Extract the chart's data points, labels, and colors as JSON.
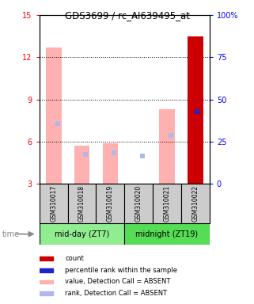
{
  "title": "GDS3699 / rc_AI639495_at",
  "samples": [
    "GSM310017",
    "GSM310018",
    "GSM310019",
    "GSM310020",
    "GSM310021",
    "GSM310022"
  ],
  "groups": [
    {
      "label": "mid-day (ZT7)",
      "indices": [
        0,
        1,
        2
      ],
      "color": "#90EE90"
    },
    {
      "label": "midnight (ZT19)",
      "indices": [
        3,
        4,
        5
      ],
      "color": "#55DD55"
    }
  ],
  "value_absent": [
    12.7,
    5.7,
    5.9,
    null,
    8.3,
    null
  ],
  "rank_absent_pct": [
    36.0,
    17.5,
    18.5,
    16.5,
    29.0,
    null
  ],
  "value_present": [
    null,
    null,
    null,
    null,
    null,
    13.5
  ],
  "rank_present_pct": [
    null,
    null,
    null,
    null,
    null,
    43.0
  ],
  "ylim_left": [
    3,
    15
  ],
  "ylim_right": [
    0,
    100
  ],
  "yticks_left": [
    3,
    6,
    9,
    12,
    15
  ],
  "yticks_right": [
    0,
    25,
    50,
    75,
    100
  ],
  "ytick_labels_right": [
    "0",
    "25",
    "50",
    "75",
    "100%"
  ],
  "color_value_absent": "#FFB0B0",
  "color_rank_absent": "#B0B8E8",
  "color_value_present": "#CC0000",
  "color_rank_present": "#2222CC",
  "bar_width": 0.55,
  "sample_box_color": "#CCCCCC",
  "legend_items": [
    {
      "color": "#CC0000",
      "label": "count"
    },
    {
      "color": "#2222CC",
      "label": "percentile rank within the sample"
    },
    {
      "color": "#FFB0B0",
      "label": "value, Detection Call = ABSENT"
    },
    {
      "color": "#B0B8E8",
      "label": "rank, Detection Call = ABSENT"
    }
  ]
}
